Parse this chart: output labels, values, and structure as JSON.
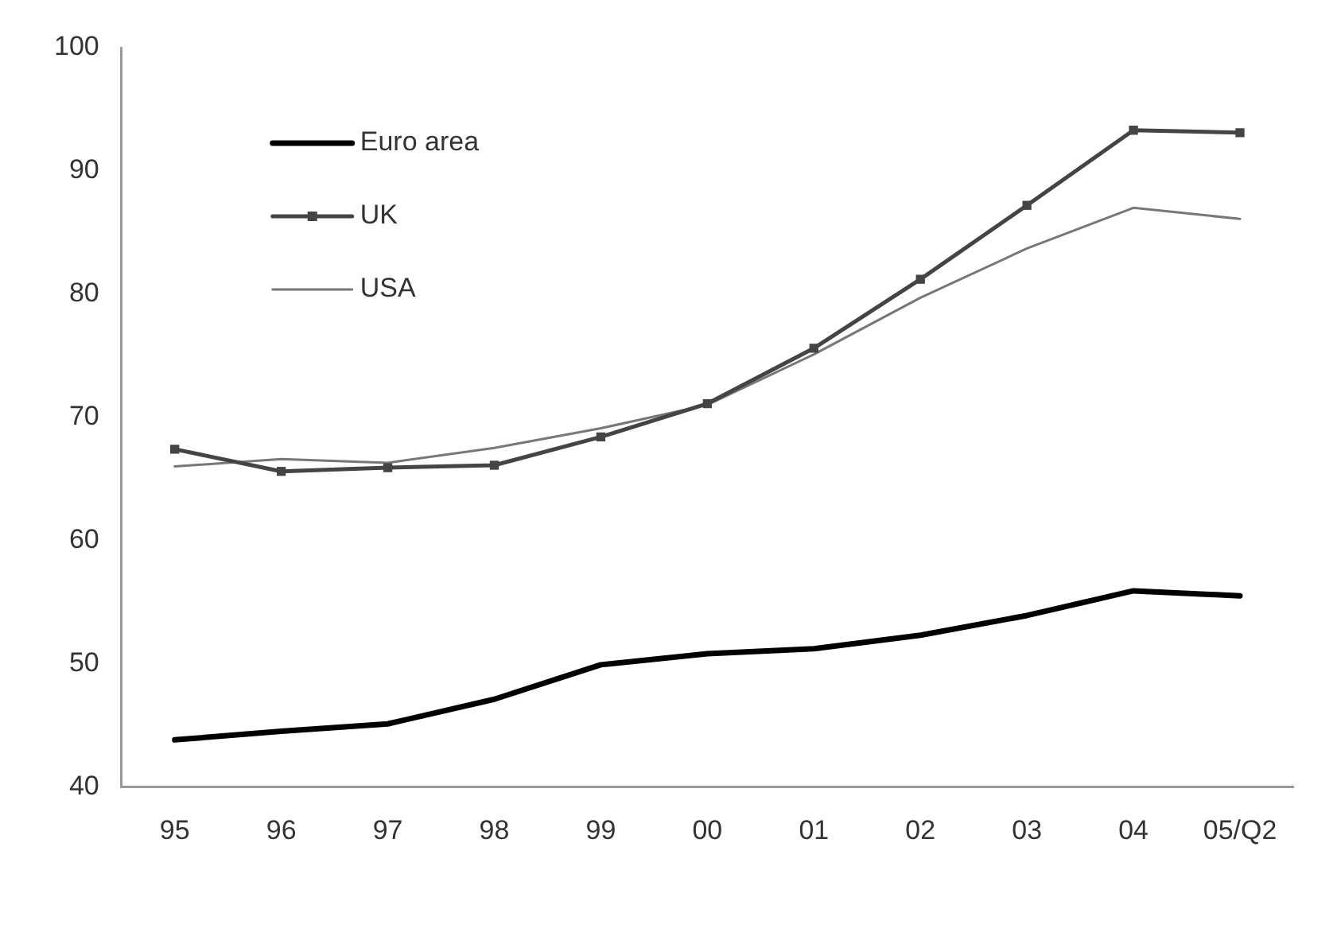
{
  "chart_data": {
    "type": "line",
    "categories": [
      "95",
      "96",
      "97",
      "98",
      "99",
      "00",
      "01",
      "02",
      "03",
      "04",
      "05/Q2"
    ],
    "series": [
      {
        "name": "Euro area",
        "color": "#000000",
        "marker": "none",
        "values": [
          43.8,
          44.5,
          45.1,
          47.1,
          49.9,
          50.8,
          51.2,
          52.3,
          53.9,
          55.9,
          55.5
        ]
      },
      {
        "name": "UK",
        "color": "#444444",
        "marker": "square",
        "values": [
          67.4,
          65.6,
          65.9,
          66.1,
          68.4,
          71.1,
          75.6,
          81.2,
          87.2,
          93.3,
          93.1
        ]
      },
      {
        "name": "USA",
        "color": "#777777",
        "marker": "none",
        "values": [
          66.0,
          66.6,
          66.3,
          67.5,
          69.1,
          71.0,
          75.1,
          79.7,
          83.7,
          87.0,
          86.1
        ]
      }
    ],
    "ylim": [
      40,
      100
    ],
    "yticks": [
      40,
      50,
      60,
      70,
      80,
      90,
      100
    ],
    "grid": false,
    "legend": "top left"
  }
}
